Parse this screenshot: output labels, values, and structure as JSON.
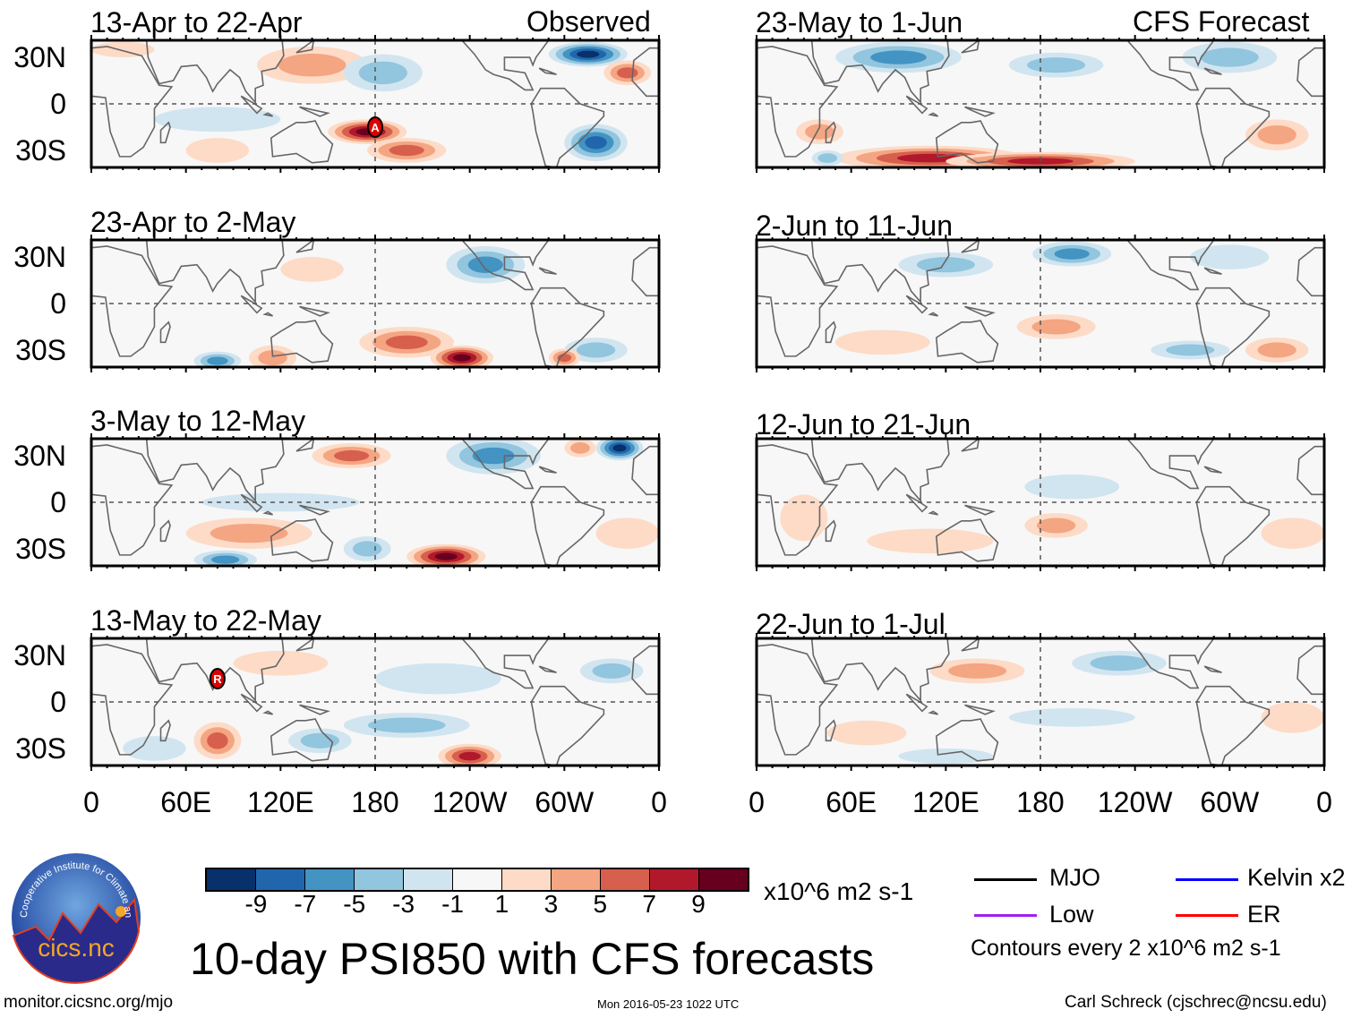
{
  "headers": {
    "observed": "Observed",
    "forecast": "CFS Forecast"
  },
  "y_ticks": [
    "30N",
    "0",
    "30S"
  ],
  "x_ticks": [
    "0",
    "60E",
    "120E",
    "180",
    "120W",
    "60W",
    "0"
  ],
  "units": "x10^6 m2 s-1",
  "title": "10-day PSI850 with CFS forecasts",
  "contour_note": "Contours every 2 x10^6 m2 s-1",
  "legend": [
    {
      "label": "MJO",
      "color": "#000000"
    },
    {
      "label": "Kelvin x2",
      "color": "#0000ff"
    },
    {
      "label": "Low",
      "color": "#a020f0"
    },
    {
      "label": "ER",
      "color": "#ff0000"
    }
  ],
  "footer": {
    "left": "monitor.cicsnc.org/mjo",
    "center": "Mon 2016-05-23 1022 UTC",
    "right": "Carl Schreck (cjschrec@ncsu.edu)"
  },
  "logo": {
    "text": "cics.nc",
    "ring_text": "Cooperative Institute for Climate and Satellites"
  },
  "chart_data": {
    "type": "heatmap",
    "variable": "850-hPa streamfunction anomaly",
    "lon_range": [
      0,
      360
    ],
    "lat_range": [
      -41,
      41
    ],
    "colorbar": {
      "ticks": [
        "-9",
        "-7",
        "-5",
        "-3",
        "-1",
        "1",
        "3",
        "5",
        "7",
        "9"
      ],
      "colors": [
        "#08306b",
        "#2166ac",
        "#4393c3",
        "#92c5de",
        "#d1e5f0",
        "#f7f7f7",
        "#fddbc7",
        "#f4a582",
        "#d6604d",
        "#b2182b",
        "#67001f"
      ]
    },
    "panels": [
      {
        "title": "13-Apr to 22-Apr",
        "group": "observed",
        "anomalies": [
          [
            140,
            25,
            35,
            12,
            4
          ],
          [
            175,
            -18,
            25,
            8,
            9
          ],
          [
            200,
            -30,
            25,
            8,
            6
          ],
          [
            185,
            20,
            25,
            12,
            -4
          ],
          [
            315,
            32,
            25,
            8,
            -9
          ],
          [
            340,
            20,
            15,
            8,
            5
          ],
          [
            320,
            -25,
            20,
            12,
            -7
          ],
          [
            80,
            -10,
            40,
            8,
            -2
          ],
          [
            80,
            -30,
            20,
            8,
            2
          ],
          [
            20,
            35,
            20,
            5,
            2
          ]
        ],
        "markers": [
          {
            "lon": 180,
            "lat": -15,
            "label": "A"
          }
        ]
      },
      {
        "title": "23-Apr to 2-May",
        "group": "observed",
        "anomalies": [
          [
            250,
            25,
            25,
            12,
            -6
          ],
          [
            200,
            -25,
            30,
            10,
            6
          ],
          [
            235,
            -35,
            20,
            8,
            9
          ],
          [
            80,
            -37,
            15,
            6,
            -6
          ],
          [
            115,
            -35,
            15,
            8,
            3
          ],
          [
            320,
            -30,
            20,
            8,
            -4
          ],
          [
            140,
            22,
            20,
            8,
            2
          ],
          [
            300,
            -35,
            10,
            6,
            5
          ]
        ],
        "markers": []
      },
      {
        "title": "3-May to 12-May",
        "group": "observed",
        "anomalies": [
          [
            165,
            30,
            25,
            8,
            6
          ],
          [
            255,
            30,
            30,
            12,
            -6
          ],
          [
            335,
            35,
            15,
            8,
            -9
          ],
          [
            310,
            35,
            10,
            6,
            4
          ],
          [
            120,
            0,
            50,
            6,
            -2
          ],
          [
            100,
            -20,
            40,
            10,
            3
          ],
          [
            85,
            -37,
            20,
            6,
            -6
          ],
          [
            225,
            -35,
            25,
            8,
            9
          ],
          [
            175,
            -30,
            15,
            8,
            -4
          ],
          [
            340,
            -20,
            20,
            10,
            2
          ]
        ],
        "markers": []
      },
      {
        "title": "13-May to 22-May",
        "group": "observed",
        "anomalies": [
          [
            80,
            -25,
            15,
            12,
            6
          ],
          [
            145,
            -25,
            20,
            8,
            -4
          ],
          [
            240,
            -35,
            20,
            8,
            7
          ],
          [
            220,
            15,
            40,
            10,
            -2
          ],
          [
            200,
            -15,
            40,
            8,
            -3
          ],
          [
            330,
            20,
            20,
            8,
            -3
          ],
          [
            120,
            25,
            30,
            8,
            2
          ],
          [
            40,
            -30,
            20,
            8,
            -2
          ]
        ],
        "markers": [
          {
            "lon": 80,
            "lat": 15,
            "label": "R"
          }
        ]
      },
      {
        "title": "23-May to 1-Jun",
        "group": "forecast",
        "anomalies": [
          [
            90,
            30,
            40,
            10,
            -6
          ],
          [
            190,
            25,
            30,
            8,
            -4
          ],
          [
            300,
            30,
            30,
            10,
            -4
          ],
          [
            110,
            -35,
            60,
            8,
            7
          ],
          [
            180,
            -37,
            60,
            6,
            8
          ],
          [
            40,
            -18,
            15,
            8,
            4
          ],
          [
            45,
            -35,
            10,
            5,
            -3
          ],
          [
            330,
            -20,
            20,
            10,
            3
          ]
        ],
        "markers": []
      },
      {
        "title": "2-Jun to 11-Jun",
        "group": "forecast",
        "anomalies": [
          [
            200,
            32,
            25,
            8,
            -5
          ],
          [
            120,
            25,
            30,
            8,
            -3
          ],
          [
            80,
            -25,
            30,
            8,
            2
          ],
          [
            190,
            -15,
            25,
            8,
            3
          ],
          [
            330,
            -30,
            20,
            8,
            4
          ],
          [
            275,
            -30,
            25,
            6,
            -3
          ],
          [
            300,
            30,
            25,
            8,
            -2
          ]
        ],
        "markers": []
      },
      {
        "title": "12-Jun to 21-Jun",
        "group": "forecast",
        "anomalies": [
          [
            30,
            -10,
            15,
            15,
            2
          ],
          [
            190,
            -15,
            20,
            8,
            4
          ],
          [
            340,
            -20,
            20,
            10,
            2
          ],
          [
            200,
            10,
            30,
            8,
            -1.5
          ],
          [
            110,
            -25,
            40,
            8,
            1.5
          ]
        ],
        "markers": []
      },
      {
        "title": "22-Jun to 1-Jul",
        "group": "forecast",
        "anomalies": [
          [
            140,
            20,
            30,
            8,
            4
          ],
          [
            230,
            25,
            30,
            8,
            -3
          ],
          [
            200,
            -10,
            40,
            6,
            -2
          ],
          [
            340,
            -10,
            20,
            10,
            2
          ],
          [
            70,
            -20,
            25,
            8,
            2
          ],
          [
            120,
            -35,
            30,
            5,
            -2
          ]
        ],
        "markers": []
      }
    ]
  }
}
